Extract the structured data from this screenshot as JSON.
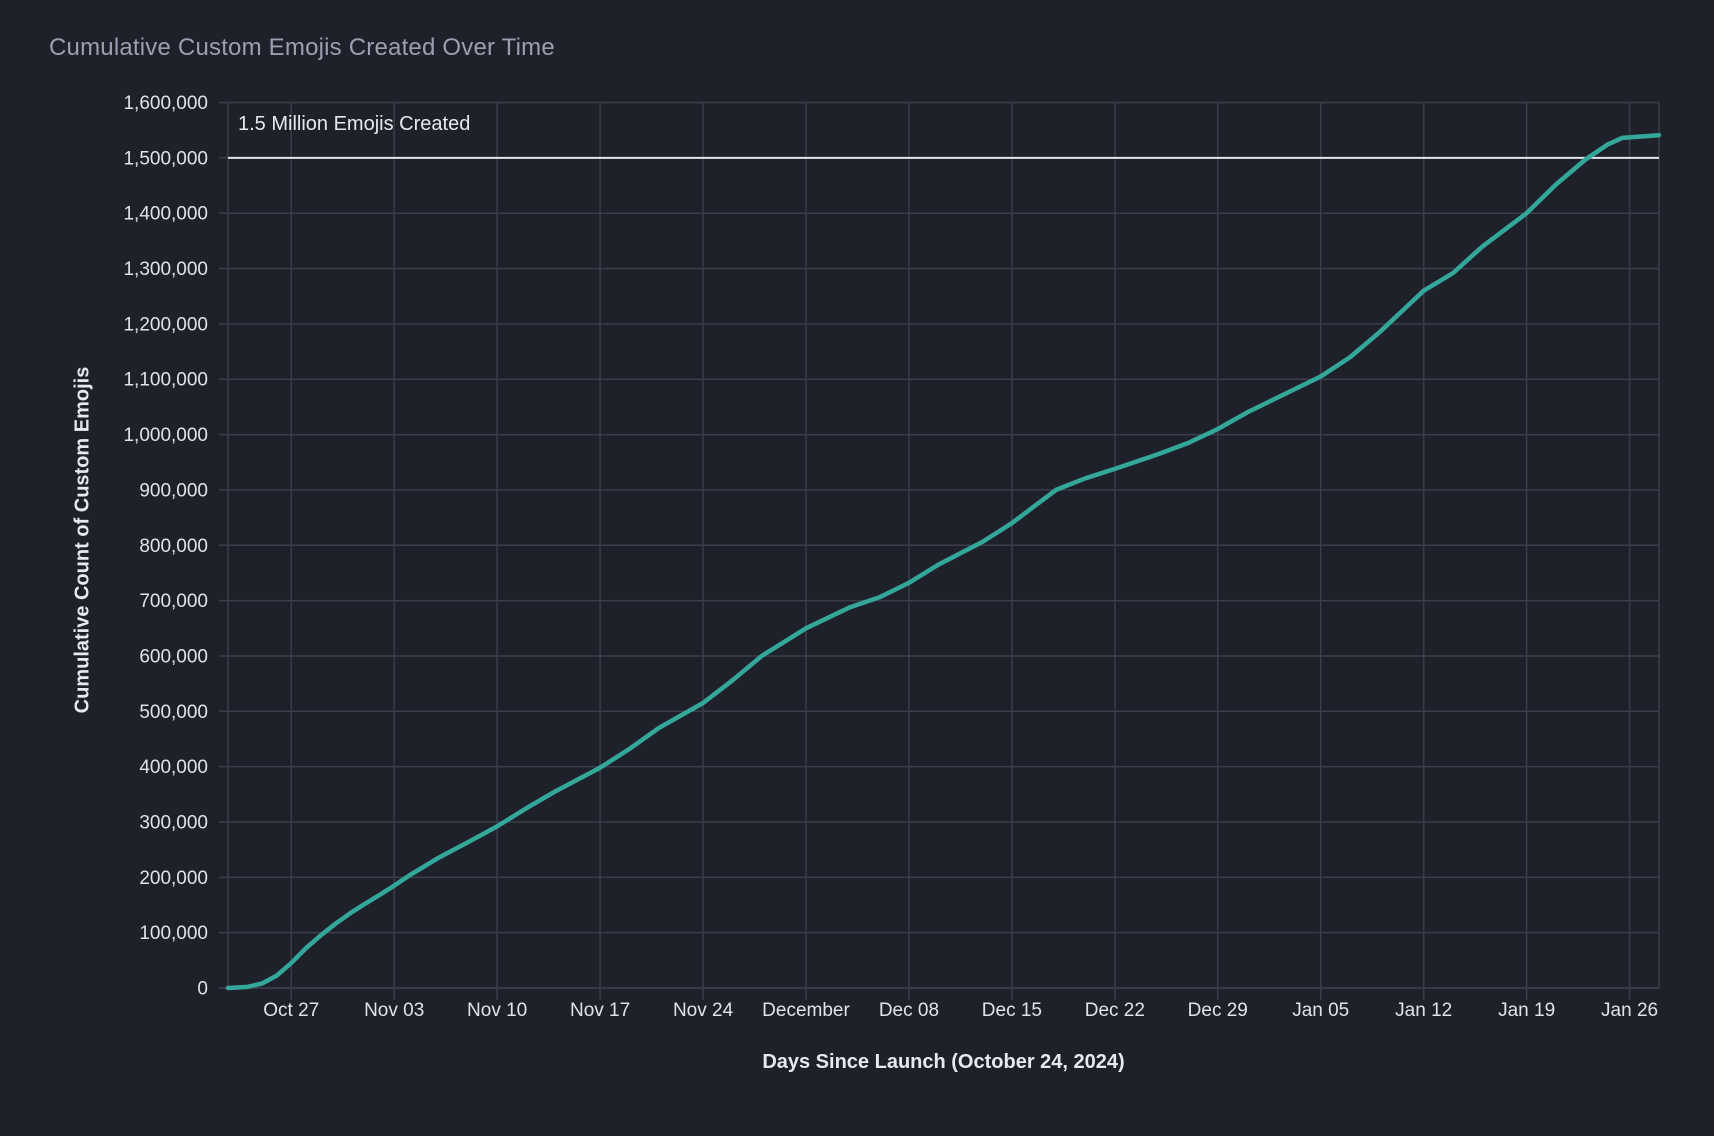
{
  "header": {
    "title": "Cumulative Custom Emojis Created Over Time"
  },
  "chart_data": {
    "type": "line",
    "title": "Cumulative Custom Emojis Created Over Time",
    "xlabel": "Days Since Launch (October 24, 2024)",
    "ylabel": "Cumulative Count of Custom Emojis",
    "legend": false,
    "grid": true,
    "x_axis": {
      "tick_days": [
        3,
        10,
        17,
        24,
        31,
        38,
        45,
        52,
        59,
        66,
        73,
        80,
        87,
        94
      ],
      "tick_labels": [
        "Oct 27",
        "Nov 03",
        "Nov 10",
        "Nov 17",
        "Nov 24",
        "December",
        "Dec 08",
        "Dec 15",
        "Dec 22",
        "Dec 29",
        "Jan 05",
        "Jan 12",
        "Jan 19",
        "Jan 26"
      ]
    },
    "y_axis": {
      "range": [
        0,
        1600000
      ],
      "tick_values": [
        0,
        100000,
        200000,
        300000,
        400000,
        500000,
        600000,
        700000,
        800000,
        900000,
        1000000,
        1100000,
        1200000,
        1300000,
        1400000,
        1500000,
        1600000
      ],
      "tick_labels": [
        "0",
        "100,000",
        "200,000",
        "300,000",
        "400,000",
        "500,000",
        "600,000",
        "700,000",
        "800,000",
        "900,000",
        "1,000,000",
        "1,100,000",
        "1,200,000",
        "1,300,000",
        "1,400,000",
        "1,500,000",
        "1,600,000"
      ]
    },
    "annotation": {
      "label": "1.5 Million Emojis Created",
      "value": 1500000
    },
    "series": [
      {
        "name": "Cumulative Custom Emojis",
        "points": [
          {
            "day": -1.3,
            "value": 0
          },
          {
            "day": 0,
            "value": 2000
          },
          {
            "day": 1,
            "value": 8000
          },
          {
            "day": 2,
            "value": 22000
          },
          {
            "day": 3,
            "value": 45000
          },
          {
            "day": 4,
            "value": 72000
          },
          {
            "day": 5,
            "value": 95000
          },
          {
            "day": 6,
            "value": 116000
          },
          {
            "day": 7,
            "value": 135000
          },
          {
            "day": 8,
            "value": 152000
          },
          {
            "day": 9,
            "value": 168000
          },
          {
            "day": 10,
            "value": 185000
          },
          {
            "day": 11,
            "value": 203000
          },
          {
            "day": 13,
            "value": 235000
          },
          {
            "day": 15,
            "value": 263000
          },
          {
            "day": 17,
            "value": 292000
          },
          {
            "day": 19,
            "value": 325000
          },
          {
            "day": 21,
            "value": 356000
          },
          {
            "day": 24,
            "value": 398000
          },
          {
            "day": 26,
            "value": 432000
          },
          {
            "day": 28,
            "value": 470000
          },
          {
            "day": 31,
            "value": 515000
          },
          {
            "day": 33,
            "value": 556000
          },
          {
            "day": 35,
            "value": 600000
          },
          {
            "day": 38,
            "value": 650000
          },
          {
            "day": 41,
            "value": 688000
          },
          {
            "day": 43,
            "value": 706000
          },
          {
            "day": 45,
            "value": 732000
          },
          {
            "day": 47,
            "value": 765000
          },
          {
            "day": 50,
            "value": 806000
          },
          {
            "day": 52,
            "value": 840000
          },
          {
            "day": 55,
            "value": 900000
          },
          {
            "day": 57,
            "value": 921000
          },
          {
            "day": 59,
            "value": 938000
          },
          {
            "day": 62,
            "value": 965000
          },
          {
            "day": 64,
            "value": 985000
          },
          {
            "day": 66,
            "value": 1010000
          },
          {
            "day": 68,
            "value": 1040000
          },
          {
            "day": 70,
            "value": 1066000
          },
          {
            "day": 73,
            "value": 1105000
          },
          {
            "day": 75,
            "value": 1140000
          },
          {
            "day": 77,
            "value": 1185000
          },
          {
            "day": 80,
            "value": 1260000
          },
          {
            "day": 82,
            "value": 1292000
          },
          {
            "day": 84,
            "value": 1340000
          },
          {
            "day": 87,
            "value": 1400000
          },
          {
            "day": 89,
            "value": 1452000
          },
          {
            "day": 91,
            "value": 1497000
          },
          {
            "day": 92.5,
            "value": 1524000
          },
          {
            "day": 93.5,
            "value": 1536000
          },
          {
            "day": 96,
            "value": 1541000
          }
        ]
      }
    ],
    "colors": {
      "line": "#34a79b",
      "reference_line": "#e4e4ea",
      "grid": "#3b3d4b",
      "background": "#1f212a",
      "tick_text": "#e2e3e9",
      "title_text": "#9aa0b1"
    }
  }
}
